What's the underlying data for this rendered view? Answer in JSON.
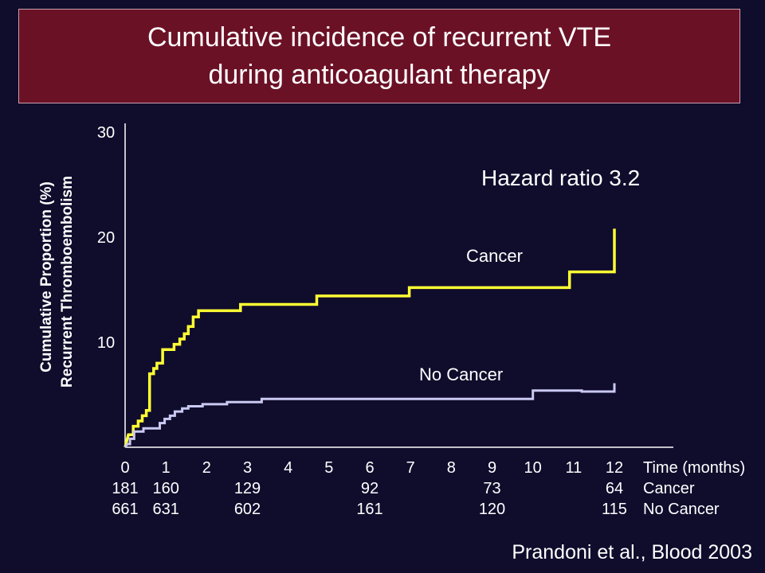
{
  "title": {
    "line1": "Cumulative incidence of recurrent VTE",
    "line2": "during anticoagulant therapy"
  },
  "citation": "Prandoni et al., Blood 2003",
  "colors": {
    "background": "#100c2c",
    "title_bg": "#6b1126",
    "cancer": "#ffff33",
    "no_cancer": "#c9c9f2",
    "axis": "#ffffff"
  },
  "chart_data": {
    "type": "line",
    "step": true,
    "ylabel_line1": "Cumulative Proportion (%)",
    "ylabel_line2": "Recurrent Thromboembolism",
    "xlabel": "Time (months)",
    "xlim": [
      0,
      12
    ],
    "ylim": [
      0,
      30
    ],
    "x_ticks": [
      0,
      1,
      2,
      3,
      4,
      5,
      6,
      7,
      8,
      9,
      10,
      11,
      12
    ],
    "y_ticks": [
      10,
      20,
      30
    ],
    "grid": false,
    "annotation": "Hazard ratio 3.2",
    "series": [
      {
        "name": "Cancer",
        "color": "#ffff33",
        "points": [
          [
            0,
            0
          ],
          [
            0.08,
            1.2
          ],
          [
            0.2,
            1.2
          ],
          [
            0.2,
            2.0
          ],
          [
            0.32,
            2.0
          ],
          [
            0.32,
            2.5
          ],
          [
            0.42,
            2.5
          ],
          [
            0.42,
            3.0
          ],
          [
            0.52,
            3.0
          ],
          [
            0.52,
            3.5
          ],
          [
            0.6,
            3.5
          ],
          [
            0.6,
            7.0
          ],
          [
            0.7,
            7.0
          ],
          [
            0.7,
            7.5
          ],
          [
            0.78,
            7.5
          ],
          [
            0.78,
            8.0
          ],
          [
            0.92,
            8.0
          ],
          [
            0.92,
            9.3
          ],
          [
            1.2,
            9.3
          ],
          [
            1.2,
            9.8
          ],
          [
            1.34,
            9.8
          ],
          [
            1.34,
            10.3
          ],
          [
            1.45,
            10.3
          ],
          [
            1.45,
            10.8
          ],
          [
            1.55,
            10.8
          ],
          [
            1.55,
            11.5
          ],
          [
            1.67,
            11.5
          ],
          [
            1.67,
            12.4
          ],
          [
            1.8,
            12.4
          ],
          [
            1.8,
            13.0
          ],
          [
            2.83,
            13.0
          ],
          [
            2.83,
            13.6
          ],
          [
            4.7,
            13.6
          ],
          [
            4.7,
            14.4
          ],
          [
            6.97,
            14.4
          ],
          [
            6.97,
            15.2
          ],
          [
            10.9,
            15.2
          ],
          [
            10.9,
            16.7
          ],
          [
            12,
            16.7
          ],
          [
            12,
            20.8
          ]
        ]
      },
      {
        "name": "No Cancer",
        "color": "#c9c9f2",
        "points": [
          [
            0,
            0
          ],
          [
            0.05,
            0.3
          ],
          [
            0.12,
            0.3
          ],
          [
            0.12,
            0.8
          ],
          [
            0.22,
            0.8
          ],
          [
            0.22,
            1.5
          ],
          [
            0.45,
            1.5
          ],
          [
            0.45,
            1.8
          ],
          [
            0.85,
            1.8
          ],
          [
            0.85,
            2.3
          ],
          [
            0.97,
            2.3
          ],
          [
            0.97,
            2.7
          ],
          [
            1.1,
            2.7
          ],
          [
            1.1,
            3.0
          ],
          [
            1.22,
            3.0
          ],
          [
            1.22,
            3.4
          ],
          [
            1.4,
            3.4
          ],
          [
            1.4,
            3.7
          ],
          [
            1.55,
            3.7
          ],
          [
            1.55,
            3.9
          ],
          [
            1.9,
            3.9
          ],
          [
            1.9,
            4.1
          ],
          [
            2.5,
            4.1
          ],
          [
            2.5,
            4.3
          ],
          [
            3.35,
            4.3
          ],
          [
            3.35,
            4.6
          ],
          [
            10.0,
            4.6
          ],
          [
            10.0,
            5.4
          ],
          [
            11.2,
            5.4
          ],
          [
            11.2,
            5.3
          ],
          [
            12,
            5.3
          ],
          [
            12,
            6.1
          ]
        ]
      }
    ],
    "series_labels": {
      "cancer": "Cancer",
      "no_cancer": "No Cancer"
    },
    "at_risk": {
      "cancer_label": "Cancer",
      "no_cancer_label": "No Cancer",
      "rows": [
        {
          "x": 0,
          "cancer": "181",
          "no_cancer": "661"
        },
        {
          "x": 1,
          "cancer": "160",
          "no_cancer": "631"
        },
        {
          "x": 3,
          "cancer": "129",
          "no_cancer": "602"
        },
        {
          "x": 6,
          "cancer": "92",
          "no_cancer": "161"
        },
        {
          "x": 9,
          "cancer": "73",
          "no_cancer": "120"
        },
        {
          "x": 12,
          "cancer": "64",
          "no_cancer": "115"
        }
      ]
    }
  }
}
